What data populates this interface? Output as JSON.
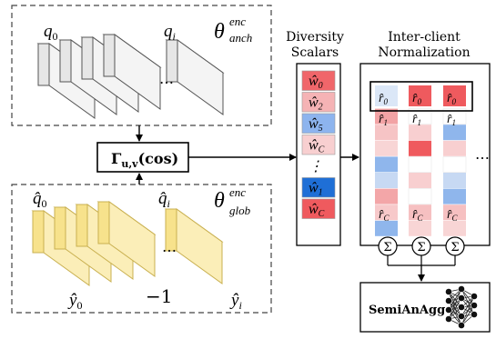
{
  "anchor_encoder": {
    "label": "θ",
    "label_sup": "enc",
    "label_sub": "anch",
    "first_label": "q",
    "first_sub": "0",
    "last_label": "q",
    "last_sub": "i",
    "ellipsis": "…"
  },
  "global_encoder": {
    "label": "θ",
    "label_sup": "enc",
    "label_sub": "glob",
    "first_label": "q̂",
    "first_sub": "0",
    "last_label": "q̂",
    "last_sub": "i",
    "ellipsis": "…",
    "bottom_first": "ŷ",
    "bottom_first_sub": "0",
    "bottom_mid": "−1",
    "bottom_last": "ŷ",
    "bottom_last_sub": "i"
  },
  "similarity_box": {
    "label": "Γ",
    "label_sub": "u,v",
    "label_suffix": "(cos)"
  },
  "diversity_scalars": {
    "title_line1": "Diversity",
    "title_line2": "Scalars",
    "cells": [
      {
        "label": "ŵ",
        "sub": "0",
        "color": "#f0666a"
      },
      {
        "label": "ŵ",
        "sub": "2",
        "color": "#f5b3b5"
      },
      {
        "label": "ŵ",
        "sub": "5",
        "color": "#8db4ee"
      },
      {
        "label": "ŵ",
        "sub": "C",
        "color": "#f8cfd0"
      },
      {
        "label": "⋮",
        "sub": "",
        "color": "#ffffff"
      },
      {
        "label": "ŵ",
        "sub": "1",
        "color": "#1f6fd6"
      },
      {
        "label": "ŵ",
        "sub": "C",
        "color": "#ef5a5e"
      }
    ]
  },
  "normalization": {
    "title_line1": "Inter-client",
    "title_line2": "Normalization",
    "ellipsis": "…",
    "top_label": "r̂",
    "top_sub": "0",
    "second_label": "r̂",
    "second_sub": "1",
    "bottom_label": "r̂",
    "bottom_sub": "C",
    "columns": [
      {
        "colors": [
          "#dbe7f7",
          "#f2a3a5",
          "#f6c4c5",
          "#f8d5d5",
          "#8fb6ec",
          "#c7d9f3",
          "#f3a6a8",
          "#f7c9ca",
          "#8fb6ec"
        ]
      },
      {
        "colors": [
          "#ef5a5e",
          "#ffffff",
          "#f8cfd0",
          "#ef5a5e",
          "#ffffff",
          "#f8cfd0",
          "#ffffff",
          "#f6c0c1",
          "#f8d5d5"
        ]
      },
      {
        "colors": [
          "#ef5a5e",
          "#ffffff",
          "#8fb6ec",
          "#f8cfd0",
          "#ffffff",
          "#c7d9f3",
          "#8fb6ec",
          "#f6c0c1",
          "#f8d5d5"
        ]
      }
    ],
    "sum_symbol": "Σ"
  },
  "aggregator": {
    "label": "SemiAnAgg",
    "icon": "neural-network-icon"
  }
}
